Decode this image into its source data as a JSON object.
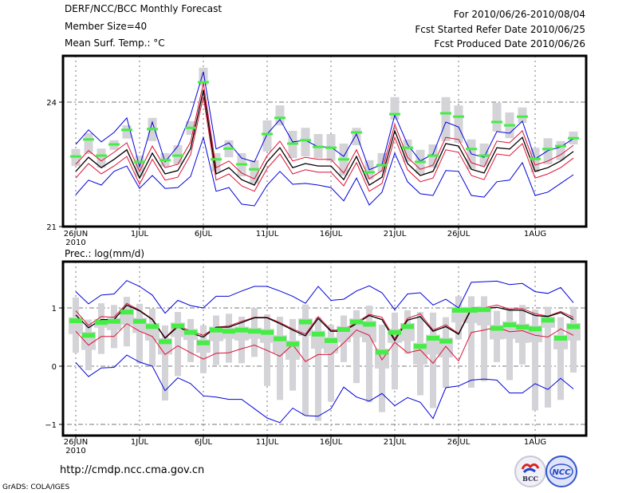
{
  "header": {
    "title": "DERF/NCC/BCC Monthly Forecast",
    "member_size": "Member Size=40",
    "top_variable": "Mean Surf. Temp.: °C",
    "period": "For 2010/06/26-2010/08/04",
    "started": "Fcst Started Refer Date 2010/06/25",
    "produced": "Fcst Produced Date 2010/06/26"
  },
  "footer": {
    "url": "http://cmdp.ncc.cma.gov.cn",
    "grads": "GrADS: COLA/IGES",
    "logo_left": "BCC",
    "logo_right": "NCC"
  },
  "colors": {
    "bound_line": "#0000dd",
    "quartile_line": "#dd1133",
    "mean_line": "#000000",
    "marker": "#44ee44",
    "box": "#d3d3d8"
  },
  "chart_data": [
    {
      "type": "line",
      "title": "Mean Surf. Temp.: °C",
      "ylim": [
        21,
        25.1
      ],
      "yticks": [
        21,
        24
      ],
      "xtick_labels": [
        "26JUN",
        "1JUL",
        "6JUL",
        "11JUL",
        "16JUL",
        "21JUL",
        "26JUL",
        "1AUG"
      ],
      "xtick_days": [
        0,
        5,
        10,
        15,
        20,
        25,
        30,
        36
      ],
      "x_sublabel": "2010",
      "grid": true,
      "n_days": 40,
      "series": [
        {
          "name": "upper",
          "role": "bound",
          "values": [
            22.98,
            23.33,
            23.04,
            23.27,
            23.62,
            22.44,
            23.52,
            22.56,
            22.94,
            23.69,
            24.73,
            22.87,
            23.02,
            22.65,
            22.56,
            23.23,
            23.58,
            23.04,
            23.08,
            22.92,
            22.92,
            22.69,
            23.23,
            22.37,
            22.5,
            23.69,
            22.98,
            22.58,
            22.75,
            23.52,
            23.4,
            22.75,
            22.67,
            23.29,
            23.25,
            23.54,
            22.63,
            22.83,
            22.92,
            23.12
          ]
        },
        {
          "name": "upper-quartile",
          "role": "quartile",
          "values": [
            22.5,
            22.83,
            22.58,
            22.79,
            23.02,
            22.33,
            22.94,
            22.42,
            22.5,
            23.04,
            24.46,
            22.42,
            22.58,
            22.29,
            22.15,
            22.71,
            23.06,
            22.58,
            22.67,
            22.62,
            22.62,
            22.29,
            22.85,
            22.15,
            22.35,
            23.46,
            22.67,
            22.38,
            22.48,
            23.15,
            23.1,
            22.54,
            22.44,
            23.06,
            23.02,
            23.31,
            22.48,
            22.58,
            22.73,
            22.96
          ]
        },
        {
          "name": "mean",
          "role": "mean",
          "values": [
            22.33,
            22.67,
            22.42,
            22.62,
            22.85,
            22.17,
            22.77,
            22.27,
            22.35,
            22.88,
            24.29,
            22.27,
            22.42,
            22.13,
            22.0,
            22.56,
            22.9,
            22.42,
            22.52,
            22.46,
            22.46,
            22.13,
            22.69,
            22.0,
            22.19,
            23.31,
            22.52,
            22.23,
            22.33,
            23.0,
            22.94,
            22.38,
            22.29,
            22.9,
            22.87,
            23.15,
            22.33,
            22.42,
            22.58,
            22.81
          ]
        },
        {
          "name": "lower-quartile",
          "role": "quartile",
          "values": [
            22.17,
            22.52,
            22.27,
            22.46,
            22.69,
            22.02,
            22.62,
            22.12,
            22.19,
            22.73,
            24.13,
            22.12,
            22.27,
            21.98,
            21.85,
            22.4,
            22.75,
            22.27,
            22.37,
            22.31,
            22.31,
            21.98,
            22.54,
            21.85,
            22.04,
            23.15,
            22.37,
            22.08,
            22.17,
            22.85,
            22.79,
            22.23,
            22.13,
            22.75,
            22.71,
            23.0,
            22.17,
            22.27,
            22.42,
            22.65
          ]
        },
        {
          "name": "lower",
          "role": "bound",
          "values": [
            21.77,
            22.12,
            22.0,
            22.33,
            22.46,
            21.92,
            22.23,
            21.92,
            21.94,
            22.21,
            23.15,
            21.85,
            21.94,
            21.54,
            21.5,
            22.0,
            22.33,
            22.02,
            22.04,
            22.0,
            21.94,
            21.62,
            22.17,
            21.52,
            21.83,
            22.77,
            22.08,
            21.79,
            21.75,
            22.35,
            22.33,
            21.75,
            21.71,
            22.08,
            22.12,
            22.54,
            21.75,
            21.83,
            22.04,
            22.25
          ]
        },
        {
          "name": "ensemble-median-marker",
          "role": "marker",
          "values": [
            22.69,
            23.1,
            22.71,
            22.98,
            23.33,
            22.56,
            23.35,
            22.6,
            22.71,
            23.38,
            24.48,
            22.62,
            22.88,
            22.5,
            22.38,
            23.23,
            23.62,
            23.0,
            23.08,
            22.92,
            22.9,
            22.62,
            23.27,
            22.31,
            22.48,
            23.71,
            22.9,
            22.56,
            22.71,
            23.73,
            23.65,
            22.87,
            22.71,
            23.52,
            23.44,
            23.65,
            22.63,
            22.87,
            22.94,
            23.13
          ]
        },
        {
          "name": "box-high",
          "role": "box",
          "values": [
            22.87,
            23.25,
            22.88,
            23.08,
            23.44,
            22.71,
            23.62,
            22.77,
            22.96,
            23.54,
            24.83,
            22.77,
            23.08,
            22.77,
            22.6,
            23.56,
            23.92,
            23.31,
            23.38,
            23.23,
            23.23,
            23.0,
            23.38,
            22.6,
            22.77,
            24.12,
            23.1,
            22.85,
            22.98,
            24.12,
            23.92,
            23.1,
            23.0,
            23.98,
            23.75,
            23.87,
            22.9,
            23.13,
            23.06,
            23.29
          ]
        },
        {
          "name": "box-low",
          "role": "box",
          "values": [
            22.46,
            22.75,
            22.42,
            22.85,
            23.12,
            22.21,
            23.06,
            22.44,
            22.5,
            23.21,
            24.4,
            22.33,
            22.67,
            22.21,
            22.04,
            22.81,
            23.44,
            22.65,
            22.69,
            22.65,
            22.58,
            22.23,
            22.96,
            22.13,
            22.31,
            23.58,
            22.56,
            22.27,
            22.42,
            23.06,
            23.02,
            22.38,
            22.46,
            23.29,
            23.13,
            23.5,
            22.31,
            22.5,
            22.6,
            22.98
          ]
        }
      ]
    },
    {
      "type": "line",
      "title": "Prec.: log(mm/d)",
      "ylim": [
        -1.2,
        1.75
      ],
      "yticks": [
        -1,
        0,
        1
      ],
      "xtick_labels": [
        "26JUN",
        "1JUL",
        "6JUL",
        "11JUL",
        "16JUL",
        "21JUL",
        "26JUL",
        "1AUG"
      ],
      "xtick_days": [
        0,
        5,
        10,
        15,
        20,
        25,
        30,
        36
      ],
      "x_sublabel": "2010",
      "grid": true,
      "n_days": 40,
      "series": [
        {
          "name": "upper",
          "role": "bound",
          "values": [
            1.28,
            1.07,
            1.22,
            1.24,
            1.47,
            1.37,
            1.22,
            0.91,
            1.13,
            1.04,
            1.0,
            1.2,
            1.2,
            1.29,
            1.37,
            1.37,
            1.29,
            1.2,
            1.08,
            1.37,
            1.13,
            1.15,
            1.29,
            1.38,
            1.26,
            0.97,
            1.24,
            1.26,
            1.05,
            1.15,
            1.0,
            1.44,
            1.45,
            1.46,
            1.4,
            1.42,
            1.28,
            1.25,
            1.35,
            1.09
          ]
        },
        {
          "name": "upper-quartile",
          "role": "quartile",
          "values": [
            0.95,
            0.7,
            0.85,
            0.84,
            1.08,
            0.96,
            0.81,
            0.49,
            0.7,
            0.6,
            0.53,
            0.67,
            0.69,
            0.77,
            0.84,
            0.84,
            0.75,
            0.64,
            0.55,
            0.85,
            0.62,
            0.62,
            0.75,
            0.89,
            0.84,
            0.47,
            0.82,
            0.9,
            0.62,
            0.71,
            0.56,
            1.0,
            1.0,
            1.05,
            0.98,
            0.99,
            0.9,
            0.86,
            0.94,
            0.84
          ]
        },
        {
          "name": "mean",
          "role": "mean",
          "values": [
            0.88,
            0.66,
            0.8,
            0.8,
            1.05,
            0.95,
            0.8,
            0.48,
            0.68,
            0.57,
            0.5,
            0.67,
            0.67,
            0.75,
            0.83,
            0.83,
            0.73,
            0.62,
            0.52,
            0.82,
            0.6,
            0.6,
            0.73,
            0.87,
            0.8,
            0.44,
            0.79,
            0.85,
            0.6,
            0.68,
            0.55,
            0.98,
            0.99,
            1.01,
            0.96,
            0.96,
            0.87,
            0.85,
            0.92,
            0.8
          ]
        },
        {
          "name": "lower-quartile",
          "role": "quartile",
          "values": [
            0.6,
            0.36,
            0.51,
            0.51,
            0.73,
            0.6,
            0.51,
            0.2,
            0.35,
            0.23,
            0.12,
            0.22,
            0.23,
            0.3,
            0.36,
            0.27,
            0.17,
            0.37,
            0.08,
            0.2,
            0.2,
            0.4,
            0.62,
            0.53,
            0.11,
            0.41,
            0.23,
            0.28,
            0.05,
            0.34,
            0.09,
            0.58,
            0.62,
            0.67,
            0.59,
            0.61,
            0.53,
            0.5,
            0.64,
            0.53
          ]
        },
        {
          "name": "lower",
          "role": "bound",
          "values": [
            0.06,
            -0.18,
            -0.03,
            -0.02,
            0.19,
            0.07,
            0.0,
            -0.42,
            -0.2,
            -0.3,
            -0.51,
            -0.53,
            -0.57,
            -0.57,
            -0.73,
            -0.89,
            -0.97,
            -0.72,
            -0.85,
            -0.86,
            -0.73,
            -0.36,
            -0.53,
            -0.6,
            -0.47,
            -0.68,
            -0.54,
            -0.62,
            -0.9,
            -0.37,
            -0.34,
            -0.24,
            -0.22,
            -0.24,
            -0.46,
            -0.46,
            -0.3,
            -0.4,
            -0.21,
            -0.39
          ]
        },
        {
          "name": "ensemble-median-marker",
          "role": "marker",
          "values": [
            0.78,
            0.53,
            0.75,
            0.77,
            0.93,
            0.77,
            0.68,
            0.42,
            0.69,
            0.58,
            0.4,
            0.62,
            0.6,
            0.62,
            0.6,
            0.58,
            0.47,
            0.38,
            0.76,
            0.55,
            0.44,
            0.63,
            0.76,
            0.72,
            0.24,
            0.58,
            0.68,
            0.34,
            0.48,
            0.43,
            0.96,
            0.96,
            0.97,
            0.65,
            0.71,
            0.67,
            0.64,
            0.79,
            0.48,
            0.68
          ]
        },
        {
          "name": "box-high",
          "role": "box",
          "values": [
            0.84,
            0.59,
            0.81,
            0.83,
            0.99,
            0.83,
            0.74,
            0.48,
            0.75,
            0.64,
            0.46,
            0.68,
            0.66,
            0.68,
            0.66,
            0.64,
            0.53,
            0.44,
            0.82,
            0.61,
            0.5,
            0.69,
            0.82,
            0.78,
            0.3,
            0.64,
            0.74,
            0.4,
            0.54,
            0.49,
            1.02,
            1.02,
            1.03,
            0.71,
            0.77,
            0.73,
            0.7,
            0.85,
            0.54,
            0.74
          ]
        },
        {
          "name": "box-low",
          "role": "box",
          "values": [
            0.55,
            0.28,
            0.66,
            0.62,
            0.71,
            0.57,
            0.44,
            0.2,
            0.5,
            0.45,
            0.23,
            0.43,
            0.47,
            0.44,
            0.47,
            0.4,
            0.22,
            0.11,
            0.52,
            0.3,
            0.22,
            0.41,
            0.5,
            0.41,
            -0.04,
            0.4,
            0.43,
            0.03,
            0.2,
            0.15,
            0.75,
            0.74,
            0.7,
            0.46,
            0.47,
            0.4,
            0.41,
            0.66,
            0.29,
            0.44
          ]
        },
        {
          "name": "whisker-high",
          "role": "whisker",
          "values": [
            1.18,
            0.8,
            1.08,
            1.05,
            1.19,
            1.07,
            0.99,
            0.7,
            0.93,
            0.81,
            0.7,
            0.87,
            0.9,
            0.85,
            1.0,
            0.89,
            0.85,
            0.81,
            1.06,
            0.84,
            0.71,
            0.87,
            0.96,
            1.04,
            0.71,
            0.92,
            0.96,
            0.93,
            0.92,
            0.84,
            1.2,
            1.2,
            1.2,
            0.95,
            1.01,
            1.05,
            0.97,
            1.02,
            0.84,
            1.02
          ]
        },
        {
          "name": "whisker-low",
          "role": "whisker",
          "values": [
            0.23,
            -0.07,
            0.21,
            0.31,
            0.34,
            0.05,
            -0.01,
            -0.59,
            -0.17,
            0.07,
            -0.12,
            0.02,
            0.06,
            0.05,
            0.16,
            -0.34,
            -0.58,
            -0.42,
            -0.85,
            -0.94,
            -0.61,
            0.07,
            -0.29,
            -0.62,
            -0.79,
            -0.4,
            0.21,
            -0.5,
            -0.72,
            -0.37,
            0.46,
            -0.37,
            -0.26,
            0.07,
            -0.24,
            0.03,
            -0.76,
            -0.71,
            -0.58,
            -0.11
          ]
        }
      ]
    }
  ]
}
